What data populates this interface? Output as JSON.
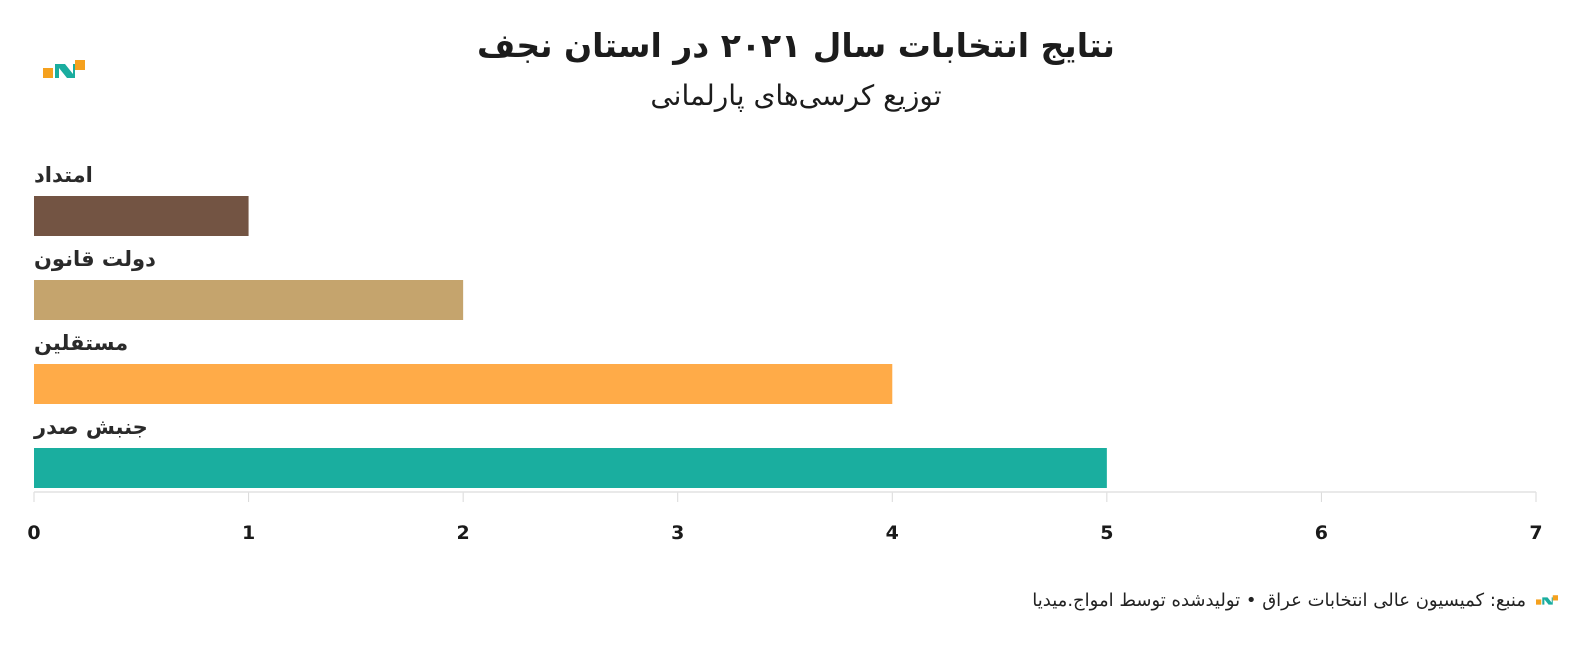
{
  "header": {
    "title": "نتایج انتخابات سال ۲۰۲۱ در استان نجف",
    "subtitle": "توزیع کرسی‌های پارلمانی"
  },
  "footer": {
    "source": "منبع: کمیسیون عالی انتخابات عراق • تولیدشده توسط امواج.میدیا"
  },
  "brand_colors": {
    "logo_teal": "#1aad9f",
    "logo_orange": "#f5a11e",
    "logo_dark": "#0b6b63"
  },
  "chart_data": {
    "type": "bar",
    "orientation": "horizontal",
    "categories": [
      "امتداد",
      "دولت قانون",
      "مستقلین",
      "جنبش صدر"
    ],
    "values": [
      1,
      2,
      4,
      5
    ],
    "colors": [
      "#735443",
      "#c5a46d",
      "#ffab48",
      "#1aae9f"
    ],
    "xlim": [
      0,
      7
    ],
    "xticks": [
      "0",
      "1",
      "2",
      "3",
      "4",
      "5",
      "6",
      "7"
    ],
    "grid": true,
    "legend": "none"
  }
}
